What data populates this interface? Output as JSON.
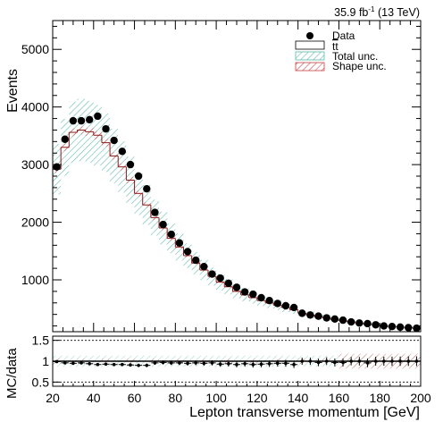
{
  "lumi_label": {
    "main": "35.9 fb",
    "sup": "-1",
    "rest": " (13 TeV)"
  },
  "chart_data": {
    "type": "histogram-with-ratio",
    "xlabel": "Lepton transverse momentum [GeV]",
    "ylabel": "Events",
    "ratio_ylabel": "MC/data",
    "xlim": [
      20,
      200
    ],
    "ylim": [
      100,
      5500
    ],
    "ratio_ylim": [
      0.4,
      1.6
    ],
    "bin_width": 4,
    "x_ticks": [
      20,
      40,
      60,
      80,
      100,
      120,
      140,
      160,
      180,
      200
    ],
    "y_ticks": [
      1000,
      2000,
      3000,
      4000,
      5000
    ],
    "ratio_ticks": [
      0.5,
      1,
      1.5
    ],
    "legend": [
      {
        "label": "Data",
        "style": "marker",
        "color": "#000000"
      },
      {
        "label": "tt",
        "overline": true,
        "style": "box-empty",
        "color": "#000000"
      },
      {
        "label": "Total unc.",
        "style": "hatch",
        "color": "#59b7a9"
      },
      {
        "label": "Shape unc.",
        "style": "hatch",
        "color": "#c84040"
      }
    ],
    "data_values": [
      2960,
      3440,
      3760,
      3760,
      3780,
      3840,
      3620,
      3420,
      3230,
      3000,
      2800,
      2580,
      2170,
      1960,
      1790,
      1640,
      1490,
      1340,
      1230,
      1100,
      1030,
      940,
      870,
      790,
      750,
      690,
      640,
      590,
      550,
      520,
      420,
      390,
      370,
      340,
      320,
      300,
      270,
      250,
      240,
      220,
      200,
      190,
      180,
      170,
      160
    ],
    "mc_values": [
      2920,
      3300,
      3560,
      3600,
      3570,
      3510,
      3380,
      3150,
      2960,
      2730,
      2500,
      2300,
      2080,
      1900,
      1720,
      1570,
      1420,
      1290,
      1170,
      1060,
      960,
      880,
      800,
      740,
      690,
      640,
      600,
      560,
      520,
      480,
      420,
      390,
      360,
      340,
      310,
      290,
      270,
      250,
      230,
      220,
      200,
      190,
      180,
      170,
      160
    ],
    "total_unc_frac": 0.15,
    "ratio_values": [
      0.99,
      0.96,
      0.95,
      0.96,
      0.94,
      0.92,
      0.93,
      0.92,
      0.92,
      0.91,
      0.9,
      0.9,
      0.96,
      0.97,
      0.96,
      0.96,
      0.95,
      0.96,
      0.95,
      0.96,
      0.93,
      0.94,
      0.92,
      0.94,
      0.92,
      0.93,
      0.94,
      0.95,
      0.95,
      0.92,
      1.0,
      1.0,
      0.97,
      1.0,
      0.97,
      0.97,
      1.0,
      1.0,
      0.96,
      1.0,
      1.0,
      1.0,
      1.0,
      1.0,
      1.0
    ]
  }
}
